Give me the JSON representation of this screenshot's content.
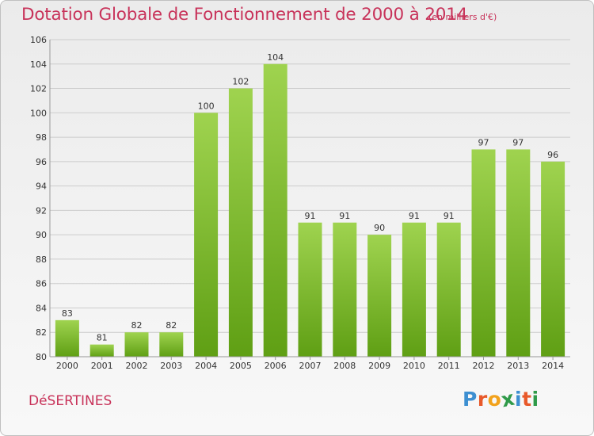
{
  "header": {
    "title": "Dotation Globale de Fonctionnement de 2000 à 2014",
    "subtitle": "(en milliers d'€)"
  },
  "footer": {
    "commune": "DéSERTINES",
    "logo_letters": [
      "P",
      "r",
      "o",
      "x",
      "i",
      "t",
      "i"
    ],
    "logo_colors": [
      "#3d8fd1",
      "#e8592a",
      "#f2a21c",
      "#2f9a49",
      "#3d8fd1",
      "#e8592a",
      "#2f9a49"
    ]
  },
  "colors": {
    "text_accent": "#c8335a",
    "bar_top": "#9fd34f",
    "bar_bottom": "#5f9f14",
    "grid": "#cccccc",
    "axis": "#999999"
  },
  "chart_data": {
    "type": "bar",
    "title": "Dotation Globale de Fonctionnement de 2000 à 2014",
    "subtitle": "(en milliers d'€)",
    "categories": [
      "2000",
      "2001",
      "2002",
      "2003",
      "2004",
      "2005",
      "2006",
      "2007",
      "2008",
      "2009",
      "2010",
      "2011",
      "2012",
      "2013",
      "2014"
    ],
    "values": [
      83,
      81,
      82,
      82,
      100,
      102,
      104,
      91,
      91,
      90,
      91,
      91,
      97,
      97,
      96
    ],
    "ylim": [
      80,
      106
    ],
    "yticks": [
      80,
      82,
      84,
      86,
      88,
      90,
      92,
      94,
      96,
      98,
      100,
      102,
      104,
      106
    ],
    "grid": true,
    "legend": "none",
    "data_labels": true
  }
}
